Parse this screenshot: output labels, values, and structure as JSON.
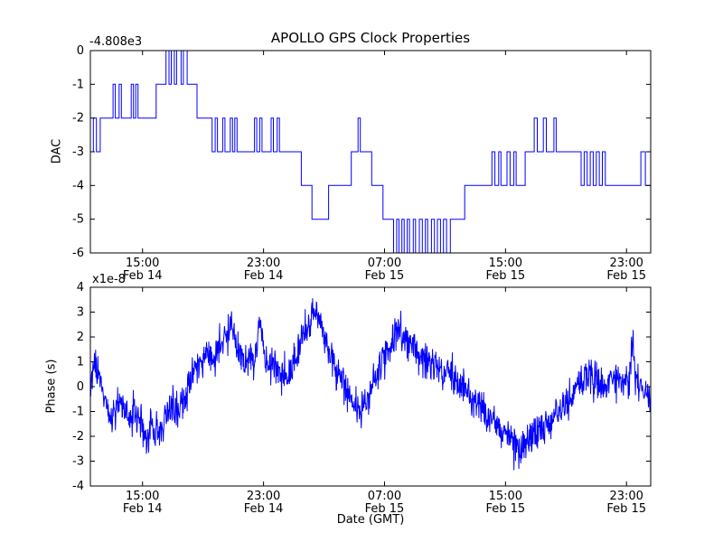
{
  "figure": {
    "background": "#ffffff",
    "line_color": "#0000ff",
    "axes_color": "#000000"
  },
  "chart_data": [
    {
      "type": "line",
      "line_style": "step-post",
      "title": "APOLLO GPS Clock Properties",
      "ylabel": "DAC",
      "y_offset_label": "-4.808e3",
      "ylim": [
        -6,
        0
      ],
      "yticks": [
        0,
        -1,
        -2,
        -3,
        -4,
        -5,
        -6
      ],
      "x_hours_lim": [
        11.55,
        48.6
      ],
      "xticks": [
        {
          "hours": 15,
          "line1": "15:00",
          "line2": "Feb 14"
        },
        {
          "hours": 23,
          "line1": "23:00",
          "line2": "Feb 14"
        },
        {
          "hours": 31,
          "line1": "07:00",
          "line2": "Feb 15"
        },
        {
          "hours": 39,
          "line1": "15:00",
          "line2": "Feb 15"
        },
        {
          "hours": 47,
          "line1": "23:00",
          "line2": "Feb 15"
        }
      ],
      "grid": false,
      "legend": "none",
      "series": [
        {
          "name": "DAC (offset -4.808e3)",
          "color": "#0000ff",
          "points": [
            [
              11.55,
              -3
            ],
            [
              11.75,
              -2
            ],
            [
              11.95,
              -3
            ],
            [
              12.2,
              -2
            ],
            [
              13.05,
              -1
            ],
            [
              13.2,
              -2
            ],
            [
              13.45,
              -1
            ],
            [
              13.6,
              -2
            ],
            [
              14.25,
              -1
            ],
            [
              14.4,
              -2
            ],
            [
              14.55,
              -1
            ],
            [
              14.7,
              -2
            ],
            [
              15.9,
              -1
            ],
            [
              16.55,
              0
            ],
            [
              16.75,
              -1
            ],
            [
              16.9,
              0
            ],
            [
              17.1,
              -1
            ],
            [
              17.25,
              0
            ],
            [
              17.55,
              -1
            ],
            [
              17.7,
              0
            ],
            [
              17.95,
              -1
            ],
            [
              18.6,
              -2
            ],
            [
              19.6,
              -3
            ],
            [
              19.8,
              -2
            ],
            [
              19.95,
              -3
            ],
            [
              20.3,
              -2
            ],
            [
              20.45,
              -3
            ],
            [
              20.8,
              -2
            ],
            [
              20.95,
              -3
            ],
            [
              21.1,
              -2
            ],
            [
              21.25,
              -3
            ],
            [
              22.4,
              -2
            ],
            [
              22.55,
              -3
            ],
            [
              22.75,
              -2
            ],
            [
              22.9,
              -3
            ],
            [
              23.5,
              -2
            ],
            [
              23.65,
              -3
            ],
            [
              23.9,
              -2
            ],
            [
              24.05,
              -3
            ],
            [
              25.5,
              -4
            ],
            [
              26.2,
              -5
            ],
            [
              27.3,
              -4
            ],
            [
              28.8,
              -3
            ],
            [
              29.25,
              -2
            ],
            [
              29.4,
              -3
            ],
            [
              30.15,
              -4
            ],
            [
              30.9,
              -5
            ],
            [
              31.6,
              -6
            ],
            [
              31.8,
              -5
            ],
            [
              31.95,
              -6
            ],
            [
              32.15,
              -5
            ],
            [
              32.3,
              -6
            ],
            [
              32.5,
              -5
            ],
            [
              32.65,
              -6
            ],
            [
              32.9,
              -5
            ],
            [
              33.05,
              -6
            ],
            [
              33.3,
              -5
            ],
            [
              33.5,
              -6
            ],
            [
              33.7,
              -5
            ],
            [
              33.85,
              -6
            ],
            [
              34.1,
              -5
            ],
            [
              34.3,
              -6
            ],
            [
              34.5,
              -5
            ],
            [
              34.7,
              -6
            ],
            [
              34.9,
              -5
            ],
            [
              35.1,
              -6
            ],
            [
              35.35,
              -5
            ],
            [
              36.3,
              -4
            ],
            [
              38.1,
              -3
            ],
            [
              38.3,
              -4
            ],
            [
              38.55,
              -3
            ],
            [
              38.7,
              -4
            ],
            [
              39.1,
              -3
            ],
            [
              39.3,
              -4
            ],
            [
              39.55,
              -3
            ],
            [
              39.7,
              -4
            ],
            [
              40.3,
              -3
            ],
            [
              40.9,
              -2
            ],
            [
              41.1,
              -3
            ],
            [
              41.5,
              -2
            ],
            [
              41.7,
              -3
            ],
            [
              42.2,
              -2
            ],
            [
              42.35,
              -3
            ],
            [
              44.0,
              -4
            ],
            [
              44.2,
              -3
            ],
            [
              44.4,
              -4
            ],
            [
              44.6,
              -3
            ],
            [
              44.8,
              -4
            ],
            [
              45.0,
              -3
            ],
            [
              45.2,
              -4
            ],
            [
              45.4,
              -3
            ],
            [
              45.6,
              -4
            ],
            [
              47.95,
              -3
            ],
            [
              48.25,
              -4
            ]
          ]
        }
      ]
    },
    {
      "type": "line",
      "line_style": "noisy",
      "ylabel": "Phase (s)",
      "y_scale_label": "x1e-8",
      "xlabel": "Date (GMT)",
      "ylim": [
        -4,
        4
      ],
      "yticks": [
        4,
        3,
        2,
        1,
        0,
        -1,
        -2,
        -3,
        -4
      ],
      "x_hours_lim": [
        11.55,
        48.6
      ],
      "xticks": [
        {
          "hours": 15,
          "line1": "15:00",
          "line2": "Feb 14"
        },
        {
          "hours": 23,
          "line1": "23:00",
          "line2": "Feb 14"
        },
        {
          "hours": 31,
          "line1": "07:00",
          "line2": "Feb 15"
        },
        {
          "hours": 39,
          "line1": "15:00",
          "line2": "Feb 15"
        },
        {
          "hours": 47,
          "line1": "23:00",
          "line2": "Feb 15"
        }
      ],
      "grid": false,
      "legend": "none",
      "series": [
        {
          "name": "Phase (units of 1e-8 s)",
          "color": "#0000ff",
          "noise_amplitude": 0.75,
          "samples": 1500,
          "trend_points": [
            [
              11.55,
              0.3
            ],
            [
              11.85,
              0.9
            ],
            [
              12.1,
              0.4
            ],
            [
              12.4,
              -0.3
            ],
            [
              12.7,
              -1.0
            ],
            [
              13.0,
              -1.3
            ],
            [
              13.3,
              -0.8
            ],
            [
              13.6,
              -0.6
            ],
            [
              13.9,
              -1.0
            ],
            [
              14.2,
              -1.4
            ],
            [
              14.5,
              -1.1
            ],
            [
              14.9,
              -1.6
            ],
            [
              15.3,
              -2.0
            ],
            [
              15.7,
              -1.6
            ],
            [
              16.1,
              -1.9
            ],
            [
              16.5,
              -1.3
            ],
            [
              16.9,
              -0.8
            ],
            [
              17.3,
              -1.1
            ],
            [
              17.7,
              -0.5
            ],
            [
              18.1,
              0.1
            ],
            [
              18.5,
              0.6
            ],
            [
              18.9,
              0.9
            ],
            [
              19.3,
              1.2
            ],
            [
              19.7,
              1.0
            ],
            [
              20.1,
              1.5
            ],
            [
              20.5,
              2.0
            ],
            [
              20.9,
              2.3
            ],
            [
              21.2,
              1.6
            ],
            [
              21.5,
              1.2
            ],
            [
              21.8,
              1.0
            ],
            [
              22.1,
              1.4
            ],
            [
              22.4,
              1.0
            ],
            [
              22.75,
              3.0
            ],
            [
              22.95,
              1.4
            ],
            [
              23.3,
              1.1
            ],
            [
              23.7,
              0.8
            ],
            [
              24.1,
              0.5
            ],
            [
              24.5,
              0.2
            ],
            [
              24.9,
              0.9
            ],
            [
              25.3,
              1.5
            ],
            [
              25.7,
              2.2
            ],
            [
              26.1,
              2.8
            ],
            [
              26.45,
              3.2
            ],
            [
              26.8,
              2.5
            ],
            [
              27.1,
              1.9
            ],
            [
              27.5,
              1.1
            ],
            [
              27.9,
              0.5
            ],
            [
              28.3,
              0.1
            ],
            [
              28.7,
              -0.4
            ],
            [
              29.1,
              -0.8
            ],
            [
              29.5,
              -1.1
            ],
            [
              29.9,
              -0.5
            ],
            [
              30.3,
              0.2
            ],
            [
              30.7,
              0.8
            ],
            [
              31.1,
              1.4
            ],
            [
              31.6,
              1.9
            ],
            [
              32.1,
              2.2
            ],
            [
              32.6,
              1.8
            ],
            [
              33.1,
              1.4
            ],
            [
              33.6,
              1.1
            ],
            [
              34.1,
              0.9
            ],
            [
              34.6,
              0.7
            ],
            [
              35.1,
              0.5
            ],
            [
              35.6,
              0.3
            ],
            [
              36.1,
              0.0
            ],
            [
              36.6,
              -0.3
            ],
            [
              37.1,
              -0.7
            ],
            [
              37.6,
              -1.1
            ],
            [
              38.1,
              -1.3
            ],
            [
              38.6,
              -1.6
            ],
            [
              39.1,
              -2.0
            ],
            [
              39.6,
              -2.3
            ],
            [
              40.0,
              -2.6
            ],
            [
              40.4,
              -2.2
            ],
            [
              40.8,
              -1.9
            ],
            [
              41.2,
              -1.7
            ],
            [
              41.6,
              -1.5
            ],
            [
              42.0,
              -1.3
            ],
            [
              42.4,
              -1.1
            ],
            [
              42.8,
              -0.8
            ],
            [
              43.2,
              -0.5
            ],
            [
              43.6,
              -0.2
            ],
            [
              44.0,
              0.2
            ],
            [
              44.4,
              0.5
            ],
            [
              44.8,
              0.3
            ],
            [
              45.2,
              0.1
            ],
            [
              45.6,
              -0.1
            ],
            [
              46.0,
              0.2
            ],
            [
              46.4,
              0.4
            ],
            [
              46.8,
              0.2
            ],
            [
              47.2,
              0.3
            ],
            [
              47.45,
              1.8
            ],
            [
              47.6,
              0.3
            ],
            [
              47.9,
              -0.1
            ],
            [
              48.2,
              -0.3
            ],
            [
              48.6,
              -0.4
            ]
          ]
        }
      ]
    }
  ]
}
